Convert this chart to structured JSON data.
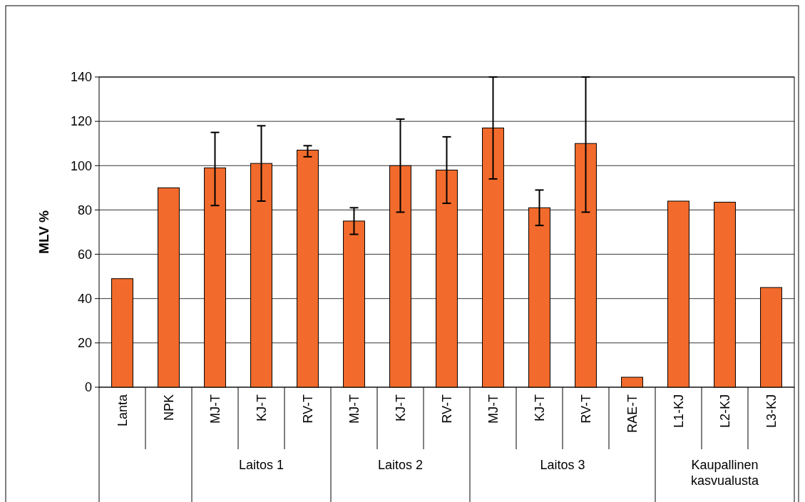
{
  "chart_data": {
    "type": "bar",
    "ylabel": "MLV %",
    "categories": [
      "Lanta",
      "NPK",
      "MJ-T",
      "KJ-T",
      "RV-T",
      "MJ-T",
      "KJ-T",
      "RV-T",
      "MJ-T",
      "KJ-T",
      "RV-T",
      "RAE-T",
      "L1-KJ",
      "L2-KJ",
      "L3-KJ"
    ],
    "values": [
      49,
      90,
      99,
      101,
      107,
      75,
      100,
      98,
      117,
      81,
      110,
      4.5,
      84,
      83.5,
      45
    ],
    "errors": [
      null,
      null,
      [
        82,
        115
      ],
      [
        84,
        118
      ],
      [
        104,
        109
      ],
      [
        69,
        81
      ],
      [
        79,
        121
      ],
      [
        83,
        113
      ],
      [
        94,
        140
      ],
      [
        73,
        89
      ],
      [
        79,
        140
      ],
      null,
      null,
      null,
      null
    ],
    "color": "#f26b2c",
    "ylim": [
      0,
      140
    ],
    "yticks": [
      0,
      20,
      40,
      60,
      80,
      100,
      120,
      140
    ],
    "grid": "y",
    "annotations": [
      "Laitos 1",
      "Laitos 2",
      "Laitos 3",
      "Kaupallinen kasvualusta"
    ]
  }
}
